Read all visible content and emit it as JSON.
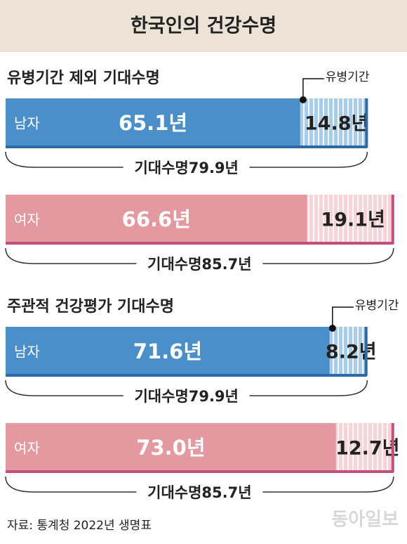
{
  "title": "한국인의 건강수명",
  "source": "자료: 통계청 2022년 생명표",
  "watermark": "동아일보",
  "chart_data": [
    {
      "type": "bar",
      "orientation": "horizontal",
      "stacked": true,
      "title": "유병기간 제외 기대수명",
      "categories": [
        "남자",
        "여자"
      ],
      "series": [
        {
          "colors": [
            "#4a8fc9",
            "#e3999f"
          ],
          "values": [
            65.1,
            66.6
          ],
          "value_labels": [
            "65.1년",
            "66.6년"
          ]
        },
        {
          "name": "유병기간",
          "colors": [
            "#a9cde9",
            "#f6d4d7"
          ],
          "values": [
            14.8,
            19.1
          ],
          "value_labels": [
            "14.8년",
            "19.1년"
          ]
        }
      ],
      "totals": [
        79.9,
        85.7
      ],
      "total_labels": [
        "기대수명79.9년",
        "기대수명85.7년"
      ]
    },
    {
      "type": "bar",
      "orientation": "horizontal",
      "stacked": true,
      "title": "주관적 건강평가 기대수명",
      "categories": [
        "남자",
        "여자"
      ],
      "series": [
        {
          "colors": [
            "#4a8fc9",
            "#e3999f"
          ],
          "values": [
            71.6,
            73.0
          ],
          "value_labels": [
            "71.6년",
            "73.0년"
          ]
        },
        {
          "name": "유병기간",
          "colors": [
            "#a9cde9",
            "#f6d4d7"
          ],
          "values": [
            8.2,
            12.7
          ],
          "value_labels": [
            "8.2년",
            "12.7년"
          ]
        }
      ],
      "totals": [
        79.9,
        85.7
      ],
      "total_labels": [
        "기대수명79.9년",
        "기대수명85.7년"
      ]
    }
  ]
}
